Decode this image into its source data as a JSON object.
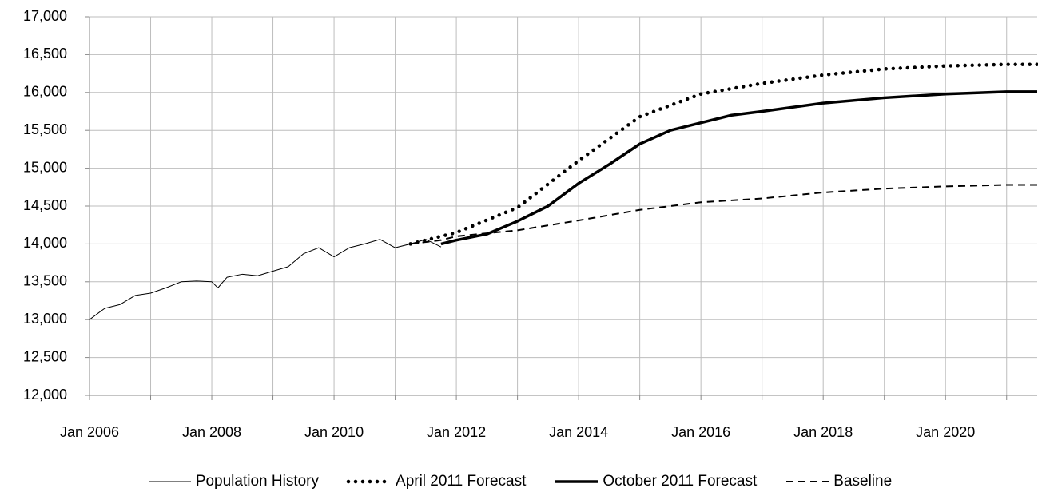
{
  "chart_data": {
    "type": "line",
    "xlim": [
      2006,
      2021.5
    ],
    "xticks": [
      {
        "value": 2006,
        "label": "Jan 2006"
      },
      {
        "value": 2008,
        "label": "Jan 2008"
      },
      {
        "value": 2010,
        "label": "Jan 2010"
      },
      {
        "value": 2012,
        "label": "Jan 2012"
      },
      {
        "value": 2014,
        "label": "Jan 2014"
      },
      {
        "value": 2016,
        "label": "Jan 2016"
      },
      {
        "value": 2018,
        "label": "Jan 2018"
      },
      {
        "value": 2020,
        "label": "Jan 2020"
      }
    ],
    "xminorticks": [
      2007,
      2009,
      2011,
      2013,
      2015,
      2017,
      2019,
      2021
    ],
    "ylim": [
      12000,
      17000
    ],
    "yticks": [
      {
        "value": 12000,
        "label": "12,000"
      },
      {
        "value": 12500,
        "label": "12,500"
      },
      {
        "value": 13000,
        "label": "13,000"
      },
      {
        "value": 13500,
        "label": "13,500"
      },
      {
        "value": 14000,
        "label": "14,000"
      },
      {
        "value": 14500,
        "label": "14,500"
      },
      {
        "value": 15000,
        "label": "15,000"
      },
      {
        "value": 15500,
        "label": "15,500"
      },
      {
        "value": 16000,
        "label": "16,000"
      },
      {
        "value": 16500,
        "label": "16,500"
      },
      {
        "value": 17000,
        "label": "17,000"
      }
    ],
    "grid": true,
    "legend": "bottom",
    "series": [
      {
        "name": "Population History",
        "color": "#000000",
        "width": 1,
        "dash": "solid",
        "x": [
          2006.0,
          2006.25,
          2006.5,
          2006.75,
          2007.0,
          2007.25,
          2007.5,
          2007.75,
          2008.0,
          2008.1,
          2008.25,
          2008.5,
          2008.75,
          2009.0,
          2009.25,
          2009.5,
          2009.75,
          2010.0,
          2010.25,
          2010.5,
          2010.75,
          2011.0,
          2011.25,
          2011.5,
          2011.75
        ],
        "values": [
          13000,
          13150,
          13200,
          13320,
          13350,
          13420,
          13500,
          13510,
          13500,
          13420,
          13560,
          13600,
          13580,
          13640,
          13700,
          13870,
          13950,
          13830,
          13950,
          14000,
          14060,
          13950,
          14000,
          14060,
          13960
        ]
      },
      {
        "name": "April 2011 Forecast",
        "color": "#000000",
        "width": 4.5,
        "dash": "dotted",
        "x": [
          2011.25,
          2012,
          2013,
          2014,
          2015,
          2016,
          2017,
          2018,
          2019,
          2020,
          2021,
          2021.5
        ],
        "values": [
          14000,
          14150,
          14480,
          15100,
          15680,
          15980,
          16120,
          16230,
          16310,
          16350,
          16370,
          16370
        ]
      },
      {
        "name": "October 2011 Forecast",
        "color": "#000000",
        "width": 3.5,
        "dash": "solid",
        "x": [
          2011.75,
          2012,
          2012.5,
          2013,
          2013.5,
          2014,
          2014.5,
          2015,
          2015.5,
          2016,
          2016.5,
          2017,
          2018,
          2019,
          2020,
          2021,
          2021.5
        ],
        "values": [
          14000,
          14050,
          14130,
          14300,
          14500,
          14800,
          15050,
          15320,
          15500,
          15600,
          15700,
          15750,
          15860,
          15930,
          15980,
          16010,
          16010
        ]
      },
      {
        "name": "Baseline",
        "color": "#000000",
        "width": 2,
        "dash": "dashed",
        "x": [
          2011.25,
          2011.75,
          2012,
          2013,
          2014,
          2015,
          2016,
          2017,
          2018,
          2019,
          2020,
          2021,
          2021.5
        ],
        "values": [
          14000,
          14050,
          14100,
          14180,
          14310,
          14450,
          14550,
          14600,
          14680,
          14730,
          14760,
          14780,
          14780
        ]
      }
    ]
  }
}
